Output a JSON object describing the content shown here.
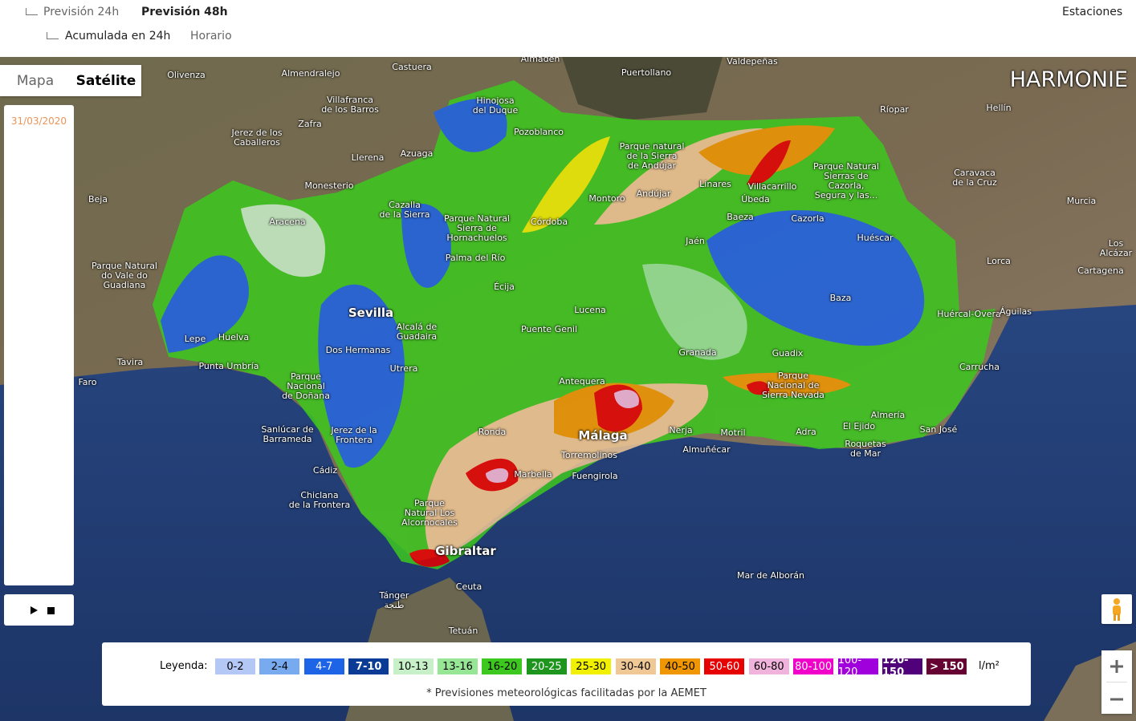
{
  "nav": {
    "items": [
      "Previsión 24h",
      "Previsión 48h",
      "Acumulada en 24h",
      "Horario"
    ],
    "right": "Estaciones"
  },
  "map_types": [
    "Mapa",
    "Satélite"
  ],
  "date": "31/03/2020",
  "model": "HARMONIE",
  "places": [
    "Olivenza",
    "Almendralejo",
    "Castuera",
    "Almadén",
    "Puertollano",
    "Valdepeñas",
    "Villafranca\nde los Barros",
    "Zafra",
    "Jerez de los\nCaballeros",
    "Llerena",
    "Azuaga",
    "Hinojosa\ndel Duque",
    "Pozoblanco",
    "Monesterio",
    "Beja",
    "Parque Natural\ndo Vale do\nGuadiana",
    "Aracena",
    "Cazalla\nde la Sierra",
    "Parque Natural\nSierra de\nHornachuelos",
    "Córdoba",
    "Montoro",
    "Andújar",
    "Parque natural\nde la Sierra\nde Andújar",
    "Linares",
    "Úbeda",
    "Villacarrillo",
    "Parque Natural\nSierras de\nCazorla,\nSegura y las...",
    "Hellín",
    "Caravaca\nde la Cruz",
    "Murcia",
    "Ríopar",
    "Jaén",
    "Baeza",
    "Cazorla",
    "Huéscar",
    "Lorca",
    "Cartagena",
    "Palma del Río",
    "Écija",
    "Sevilla",
    "Alcalá de\nGuadaira",
    "Dos Hermanas",
    "Utrera",
    "Lucena",
    "Puente Genil",
    "Baza",
    "Guadix",
    "Granada",
    "Huércal-Overa",
    "Águilas",
    "Lepe",
    "Huelva",
    "Tavira",
    "Faro",
    "Punta Umbría",
    "Parque\nNacional\nde Doñana",
    "Sanlúcar de\nBarrameda",
    "Jerez de la\nFrontera",
    "Cádiz",
    "Chiclana\nde la Frontera",
    "Antequera",
    "Ronda",
    "Málaga",
    "Torremolinos",
    "Fuengirola",
    "Marbella",
    "Nerja",
    "Motril",
    "Almuñécar",
    "Parque\nNacional de\nSierra Nevada",
    "El Ejido",
    "Adra",
    "Almería",
    "Roquetas\nde Mar",
    "San José",
    "Carrucha",
    "Parque\nNatural Los\nAlcornocales",
    "Gibraltar",
    "Tánger\nطنجة",
    "Ceuta",
    "Tetuán",
    "Mar de Alborán",
    "Los Alcázar"
  ],
  "legend": {
    "label": "Leyenda:",
    "unit": "l/m²",
    "items": [
      {
        "label": "0-2",
        "color": "#b4c8f5"
      },
      {
        "label": "2-4",
        "color": "#78aaf0"
      },
      {
        "label": "4-7",
        "color": "#1e64e6"
      },
      {
        "label": "7-10",
        "color": "#0a3c96"
      },
      {
        "label": "10-13",
        "color": "#c8f0c8"
      },
      {
        "label": "13-16",
        "color": "#96e696"
      },
      {
        "label": "16-20",
        "color": "#3cc81e"
      },
      {
        "label": "20-25",
        "color": "#1e961e"
      },
      {
        "label": "25-30",
        "color": "#f0f000"
      },
      {
        "label": "30-40",
        "color": "#f0c896"
      },
      {
        "label": "40-50",
        "color": "#f09600"
      },
      {
        "label": "50-60",
        "color": "#e60000"
      },
      {
        "label": "60-80",
        "color": "#f0b4dc"
      },
      {
        "label": "80-100",
        "color": "#f000c8"
      },
      {
        "label": "100-120",
        "color": "#a000dc"
      },
      {
        "label": "120-150",
        "color": "#500078"
      },
      {
        "label": "> 150",
        "color": "#640032"
      }
    ]
  },
  "note": "* Previsiones meteorológicas facilitadas por la AEMET"
}
